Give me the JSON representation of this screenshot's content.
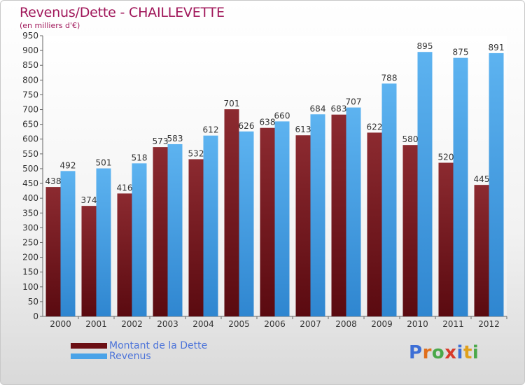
{
  "header": {
    "title": "Revenus/Dette - CHAILLEVETTE",
    "subtitle": "(en milliers d'€)"
  },
  "chart_data": {
    "type": "bar",
    "categories": [
      "2000",
      "2001",
      "2002",
      "2003",
      "2004",
      "2005",
      "2006",
      "2007",
      "2008",
      "2009",
      "2010",
      "2011",
      "2012"
    ],
    "series": [
      {
        "name": "Montant de la Dette",
        "values": [
          438,
          374,
          416,
          573,
          532,
          701,
          638,
          613,
          683,
          622,
          580,
          520,
          445
        ],
        "color": "#7a1a1e"
      },
      {
        "name": "Revenus",
        "values": [
          492,
          501,
          518,
          583,
          612,
          626,
          660,
          684,
          707,
          788,
          895,
          875,
          891
        ],
        "color": "#4aa3e8"
      }
    ],
    "title": "Revenus/Dette - CHAILLEVETTE",
    "subtitle": "(en milliers d'€)",
    "ylim": [
      0,
      950
    ],
    "ytick_step": 50,
    "grid": false,
    "legend_position": "bottom-left"
  },
  "legend": {
    "items": [
      {
        "label": "Montant de la Dette",
        "color": "#7a1a1e"
      },
      {
        "label": "Revenus",
        "color": "#4aa3e8"
      }
    ]
  },
  "logo": {
    "letters": [
      "P",
      "r",
      "o",
      "x",
      "i",
      "t",
      "i"
    ],
    "colors": [
      "#3d6fd6",
      "#e06f1c",
      "#4aa84a",
      "#d83a2a",
      "#3d6fd6",
      "#e0a01c",
      "#4aa84a"
    ]
  }
}
